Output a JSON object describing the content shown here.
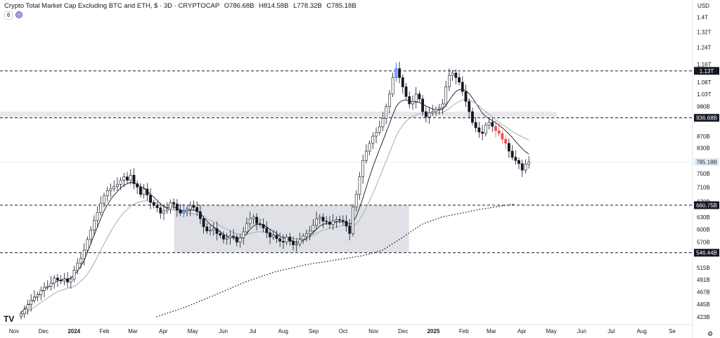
{
  "header": {
    "title": "Crypto Total Market Cap Excluding BTC and ETH, $ · 3D · CRYPTOCAP",
    "open_label": "O",
    "open": "786.68B",
    "high_label": "H",
    "high": "814.58B",
    "low_label": "L",
    "low": "778.32B",
    "close_label": "C",
    "close": "785.18B",
    "indicator_count": "6"
  },
  "currency": "USD",
  "logo": "TV",
  "colors": {
    "candle": "#131722",
    "hollow_fill": "#ffffff",
    "highlight_candle": "#1e53e5",
    "red_candle": "#ef5350",
    "ma_fast": "#131722",
    "ma_slow": "#a0a3ab",
    "ma_long": "#131722",
    "range_box": "#d1d4dc",
    "price_tag_bg": "#131722",
    "last_price_bg": "#e3effd"
  },
  "chart_data": {
    "type": "candlestick",
    "title": "Crypto Total Market Cap Excluding BTC and ETH, $ · 3D · CRYPTOCAP",
    "y_axis": {
      "scale": "log",
      "ticks": [
        "1.4T",
        "1.32T",
        "1.24T",
        "1.16T",
        "1.08T",
        "1.03T",
        "980B",
        "870B",
        "830B",
        "750B",
        "710B",
        "670B",
        "630B",
        "600B",
        "570B",
        "515B",
        "491B",
        "467B",
        "445B",
        "423B"
      ],
      "tick_values": [
        1400,
        1320,
        1240,
        1160,
        1080,
        1030,
        980,
        870,
        830,
        750,
        710,
        670,
        630,
        600,
        570,
        515,
        491,
        467,
        445,
        423
      ],
      "range": [
        410,
        1450
      ]
    },
    "x_axis": {
      "ticks": [
        "Nov",
        "Dec",
        "2024",
        "Feb",
        "Mar",
        "Apr",
        "May",
        "Jun",
        "Jul",
        "Aug",
        "Sep",
        "Oct",
        "Nov",
        "Dec",
        "2025",
        "Feb",
        "Mar",
        "Apr",
        "May",
        "Jun",
        "Jul",
        "Aug",
        "Se"
      ],
      "tick_days": [
        0,
        30,
        61,
        92,
        121,
        152,
        182,
        213,
        243,
        274,
        305,
        335,
        366,
        396,
        427,
        458,
        486,
        517,
        547,
        578,
        608,
        639,
        670
      ]
    },
    "levels": [
      {
        "label": "1.13T",
        "value": 1130,
        "style": "dashed"
      },
      {
        "label": "936.68B",
        "value": 936.68,
        "style": "dashed"
      },
      {
        "label": "660.75B",
        "value": 660.75,
        "style": "dashed"
      },
      {
        "label": "546.44B",
        "value": 546.44,
        "style": "dashed"
      }
    ],
    "last_price": {
      "label": "785.18B",
      "value": 785.18
    },
    "range_box": {
      "day_start": 163,
      "day_end": 402,
      "top": 660.75,
      "bottom": 546.44
    },
    "resistance_band": {
      "top": 960,
      "bottom": 940
    },
    "candles_x": [
      28,
      31,
      34,
      37,
      40,
      43,
      46,
      49,
      52,
      55,
      58,
      61,
      64,
      67,
      70,
      73,
      76,
      79,
      82,
      85,
      88,
      91,
      94,
      97,
      100,
      103,
      106,
      109,
      112,
      115,
      118,
      121,
      124,
      127,
      130,
      133,
      136,
      139,
      142,
      145,
      148,
      151,
      154,
      157,
      160,
      163,
      166,
      169,
      172,
      175,
      178,
      181,
      184,
      187,
      190,
      193,
      196,
      199,
      202,
      205,
      208,
      211,
      214,
      217,
      220,
      223,
      226,
      229,
      232,
      235,
      238,
      241,
      244,
      247,
      250,
      253,
      256,
      259,
      262,
      265,
      268,
      271,
      274,
      277,
      280,
      283,
      286,
      289,
      292,
      295,
      298,
      301,
      304,
      307,
      310,
      313,
      316,
      319,
      322,
      325,
      328,
      331,
      334,
      337,
      340,
      343,
      346,
      349,
      352,
      355,
      358,
      361,
      364,
      367,
      370,
      373,
      376,
      379,
      382,
      385,
      388,
      391,
      394,
      397,
      400,
      403,
      406,
      409,
      412,
      415,
      418,
      421,
      424,
      427,
      430,
      433,
      436,
      439,
      442,
      445,
      448,
      451,
      454,
      457,
      460,
      463,
      466,
      469,
      472,
      475,
      478,
      481,
      484,
      487,
      490,
      493,
      496,
      499,
      502
    ],
    "candles_close": [
      428,
      436,
      444,
      452,
      458,
      462,
      470,
      476,
      478,
      484,
      494,
      490,
      488,
      492,
      486,
      492,
      510,
      524,
      534,
      552,
      576,
      598,
      622,
      642,
      666,
      686,
      700,
      706,
      712,
      718,
      730,
      740,
      730,
      745,
      720,
      710,
      690,
      705,
      688,
      668,
      660,
      654,
      640,
      646,
      650,
      668,
      664,
      648,
      640,
      646,
      650,
      660,
      655,
      644,
      626,
      606,
      596,
      598,
      602,
      590,
      586,
      577,
      580,
      584,
      582,
      570,
      580,
      594,
      614,
      626,
      630,
      614,
      612,
      603,
      592,
      582,
      586,
      578,
      572,
      570,
      582,
      572,
      564,
      566,
      576,
      584,
      590,
      596,
      610,
      626,
      630,
      620,
      618,
      612,
      620,
      624,
      622,
      620,
      608,
      590,
      656,
      690,
      740,
      790,
      820,
      846,
      870,
      884,
      904,
      934,
      980,
      1030,
      1100,
      1140,
      1100,
      1060,
      1020,
      990,
      1000,
      1030,
      1010,
      960,
      940,
      955,
      960,
      970,
      975,
      990,
      1060,
      1110,
      1120,
      1100,
      1080,
      1040,
      1000,
      960,
      920,
      900,
      885,
      880,
      910,
      920,
      905,
      890,
      880,
      860,
      846,
      820,
      800,
      790,
      780,
      760,
      778,
      785
    ],
    "series": [
      {
        "name": "",
        "type": "ma_fast",
        "values": [
          430,
          436,
          442,
          448,
          454,
          460,
          466,
          472,
          476,
          480,
          486,
          488,
          490,
          492,
          492,
          494,
          500,
          508,
          518,
          530,
          548,
          566,
          586,
          606,
          626,
          646,
          662,
          676,
          688,
          698,
          708,
          716,
          720,
          724,
          722,
          718,
          712,
          708,
          700,
          690,
          682,
          674,
          664,
          658,
          654,
          656,
          656,
          652,
          648,
          646,
          646,
          648,
          648,
          646,
          640,
          630,
          620,
          612,
          606,
          600,
          594,
          588,
          584,
          582,
          580,
          578,
          578,
          582,
          590,
          600,
          608,
          612,
          612,
          610,
          606,
          600,
          596,
          590,
          584,
          580,
          578,
          576,
          572,
          570,
          570,
          574,
          578,
          584,
          592,
          600,
          608,
          612,
          614,
          614,
          616,
          618,
          618,
          618,
          616,
          612,
          618,
          632,
          654,
          680,
          710,
          740,
          770,
          798,
          826,
          854,
          884,
          914,
          948,
          980,
          996,
          1004,
          1006,
          1002,
          998,
          998,
          996,
          990,
          982,
          976,
          970,
          966,
          966,
          970,
          984,
          1004,
          1024,
          1040,
          1048,
          1050,
          1044,
          1032,
          1014,
          994,
          974,
          954,
          942,
          934,
          926,
          918,
          910,
          900,
          890,
          878,
          866,
          852,
          840,
          828,
          818,
          810
        ]
      },
      {
        "name": "",
        "type": "ma_slow",
        "values": [
          425,
          428,
          432,
          436,
          440,
          444,
          448,
          452,
          456,
          460,
          464,
          468,
          470,
          472,
          474,
          476,
          478,
          482,
          488,
          494,
          502,
          512,
          524,
          538,
          552,
          566,
          580,
          594,
          608,
          620,
          632,
          642,
          650,
          658,
          664,
          668,
          670,
          672,
          672,
          670,
          668,
          664,
          660,
          656,
          652,
          650,
          648,
          646,
          644,
          642,
          640,
          640,
          638,
          636,
          634,
          630,
          626,
          622,
          618,
          614,
          608,
          604,
          600,
          596,
          592,
          590,
          588,
          588,
          588,
          590,
          592,
          594,
          594,
          594,
          592,
          590,
          588,
          586,
          584,
          582,
          580,
          580,
          578,
          578,
          578,
          578,
          580,
          582,
          586,
          590,
          594,
          598,
          600,
          602,
          604,
          606,
          608,
          608,
          608,
          606,
          608,
          614,
          624,
          638,
          654,
          672,
          692,
          714,
          738,
          762,
          788,
          814,
          842,
          870,
          892,
          910,
          924,
          934,
          942,
          948,
          952,
          954,
          954,
          954,
          954,
          954,
          955,
          958,
          964,
          972,
          982,
          992,
          1000,
          1006,
          1008,
          1006,
          1000,
          992,
          982,
          970,
          960,
          950,
          940,
          930,
          920,
          912,
          904,
          896,
          888,
          880,
          874,
          868,
          862,
          858
        ]
      },
      {
        "name": "",
        "type": "ma_long",
        "days": [
          145,
          175,
          205,
          235,
          265,
          295,
          325,
          355,
          375,
          395,
          415,
          435,
          455,
          475,
          495,
          510
        ],
        "values": [
          423,
          440,
          462,
          486,
          506,
          520,
          530,
          540,
          552,
          580,
          612,
          630,
          640,
          650,
          658,
          664
        ]
      }
    ]
  }
}
